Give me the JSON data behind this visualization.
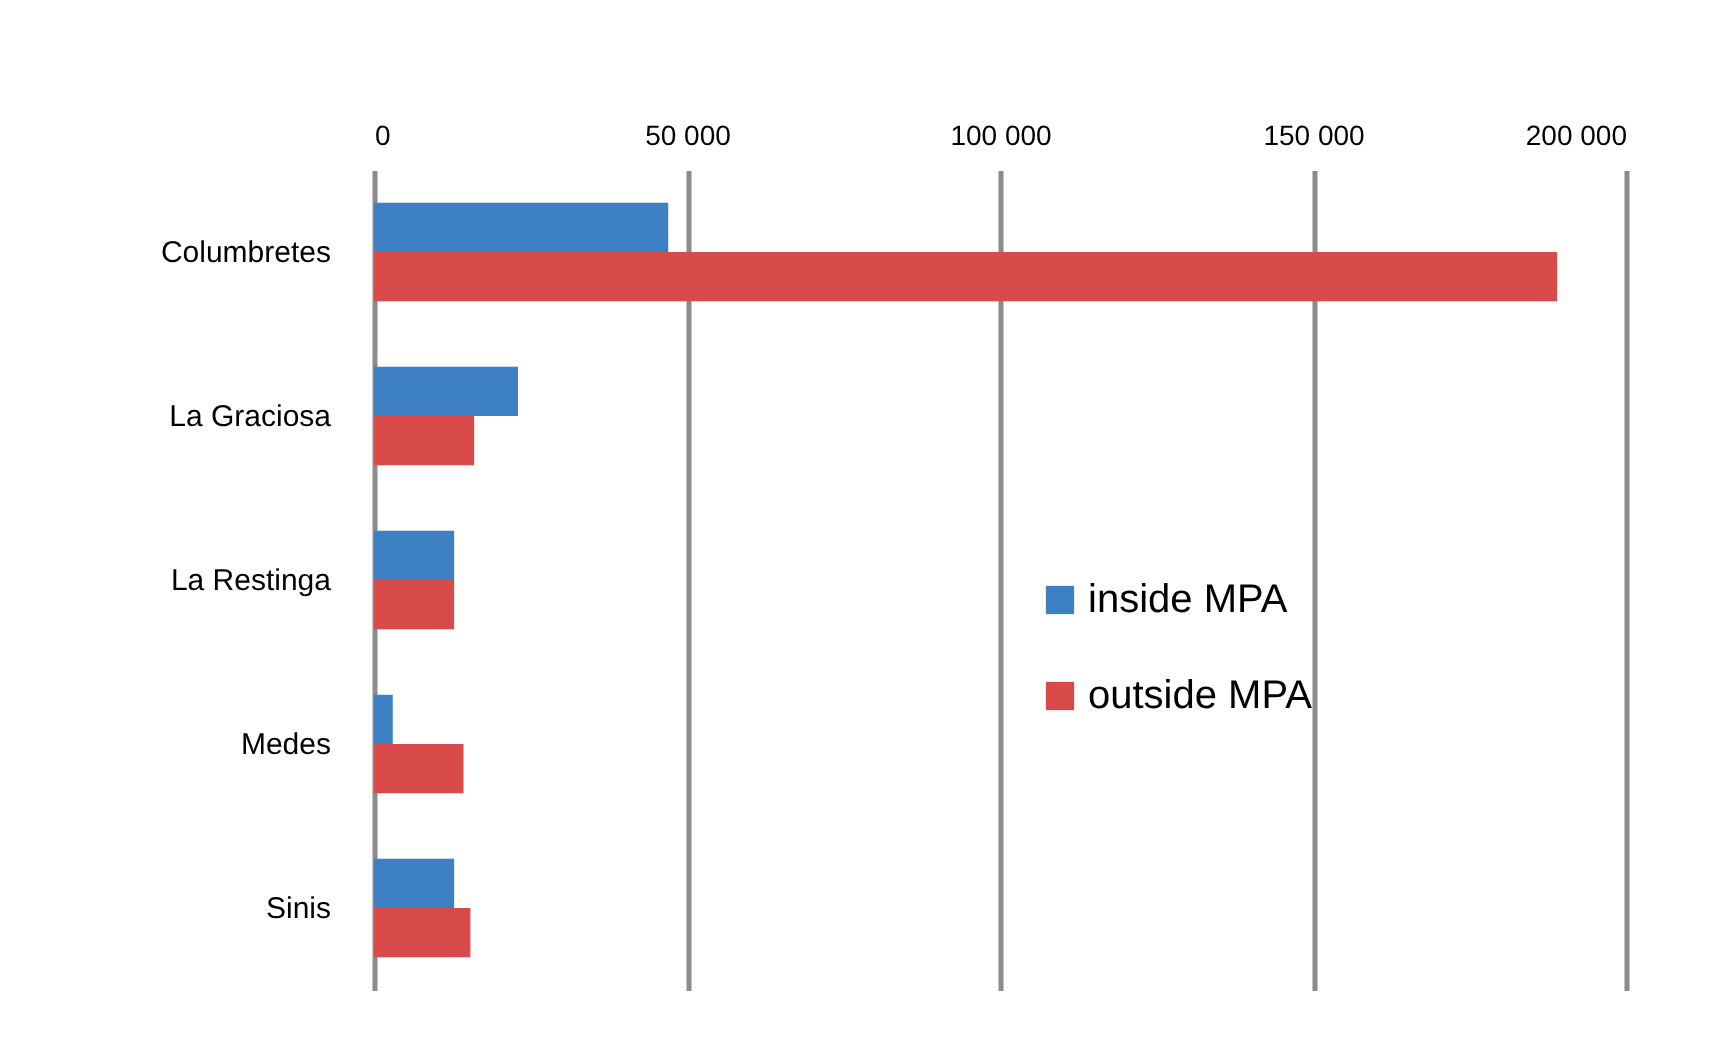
{
  "chart_data": {
    "type": "bar",
    "orientation": "horizontal",
    "categories": [
      "Columbretes",
      "La Graciosa",
      "La Restinga",
      "Medes",
      "Sinis"
    ],
    "series": [
      {
        "name": "inside MPA",
        "color": "#3d80c3",
        "values": [
          47000,
          23000,
          12800,
          3000,
          12800
        ]
      },
      {
        "name": "outside MPA",
        "color": "#d94b4b",
        "values": [
          189000,
          16000,
          12800,
          14300,
          15400
        ]
      }
    ],
    "xlim": [
      0,
      200000
    ],
    "xticks": [
      0,
      {
        "value": 50000,
        "label": "50 000"
      },
      {
        "value": 100000,
        "label": "100 000"
      },
      {
        "value": 150000,
        "label": "150 000"
      },
      {
        "value": 200000,
        "label": "200 000"
      }
    ],
    "grid": "x",
    "legend": "right"
  }
}
